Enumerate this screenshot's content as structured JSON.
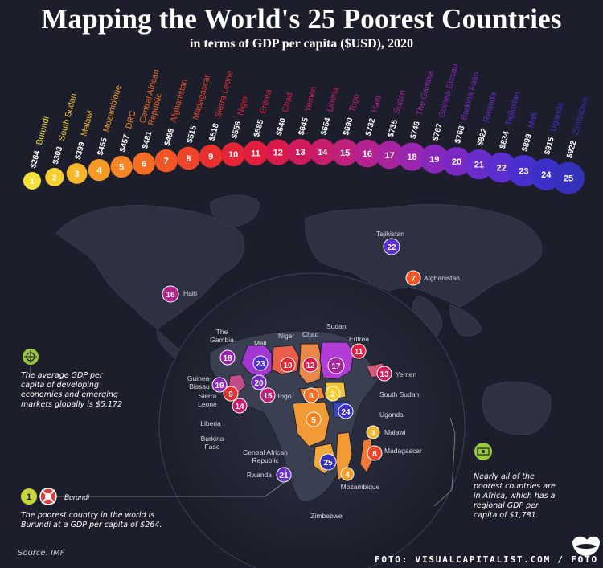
{
  "title": "Mapping the World's 25 Poorest Countries",
  "subtitle": "in terms of GDP per capita ($USD), 2020",
  "chart_data": {
    "type": "bar",
    "title": "Mapping the World's 25 Poorest Countries",
    "subtitle": "in terms of GDP per capita ($USD), 2020",
    "categories": [
      "Burundi",
      "South Sudan",
      "Malawi",
      "Mozambique",
      "DRC",
      "Central African Republic",
      "Afghanistan",
      "Madagascar",
      "Sierra Leone",
      "Niger",
      "Eritrea",
      "Chad",
      "Yemen",
      "Liberia",
      "Togo",
      "Haiti",
      "Sudan",
      "The Gambia",
      "Guinea-Bissau",
      "Burkina Faso",
      "Rwanda",
      "Tajikistan",
      "Mali",
      "Uganda",
      "Zimbabwe"
    ],
    "ranks": [
      1,
      2,
      3,
      4,
      5,
      6,
      7,
      8,
      9,
      10,
      11,
      12,
      13,
      14,
      15,
      16,
      17,
      18,
      19,
      20,
      21,
      22,
      23,
      24,
      25
    ],
    "value_labels": [
      "$264",
      "$303",
      "$399",
      "$455",
      "$457",
      "$481",
      "$499",
      "$515",
      "$518",
      "$556",
      "$585",
      "$640",
      "$645",
      "$654",
      "$690",
      "$732",
      "$735",
      "$746",
      "$767",
      "$768",
      "$822",
      "$834",
      "$899",
      "$915",
      "$922"
    ],
    "values": [
      264,
      303,
      399,
      455,
      457,
      481,
      499,
      515,
      518,
      556,
      585,
      640,
      645,
      654,
      690,
      732,
      735,
      746,
      767,
      768,
      822,
      834,
      899,
      915,
      922
    ],
    "colors": [
      "#f4e23a",
      "#f6cf2f",
      "#f8b62a",
      "#f89b26",
      "#f78523",
      "#f56c23",
      "#f25626",
      "#ee442a",
      "#e9302f",
      "#e52535",
      "#e11e3d",
      "#d91a4b",
      "#d11a5a",
      "#c91c6b",
      "#c0207c",
      "#b4228f",
      "#a823a0",
      "#9a25ae",
      "#8a27bb",
      "#7a29c4",
      "#6a2ccb",
      "#5a2ecf",
      "#4a2fcf",
      "#3d30c8",
      "#3431bb"
    ]
  },
  "map": {
    "labels": {
      "tajikistan": "Tajikistan",
      "afghanistan": "Afghanistan",
      "haiti": "Haiti",
      "gambia": "The Gambia",
      "mali": "Mali",
      "niger": "Niger",
      "chad": "Chad",
      "sudan": "Sudan",
      "eritrea": "Eritrea",
      "yemen": "Yemen",
      "guinea_bissau": "Guinea-Bissau",
      "togo": "Togo",
      "sierra_leone": "Sierra Leone",
      "liberia": "Liberia",
      "burkina_faso": "Burkina Faso",
      "south_sudan": "South Sudan",
      "uganda": "Uganda",
      "malawi": "Malawi",
      "madagascar": "Madagascar",
      "car": "Central African Republic",
      "rwanda": "Rwanda",
      "mozambique": "Mozambique",
      "zimbabwe": "Zimbabwe",
      "burundi": "Burundi"
    }
  },
  "notes": {
    "average": "The average GDP per capita of developing economies and emerging markets globally is $5,172",
    "poorest": "The poorest country in the world is Burundi at a GDP per capita of $264.",
    "africa": "Nearly all of the poorest countries are in Africa, which has a regional GDP per capita of $1,781."
  },
  "source": "Source: IMF",
  "credit": "FOTO: VISUALCAPITALIST.COM / FOTO"
}
